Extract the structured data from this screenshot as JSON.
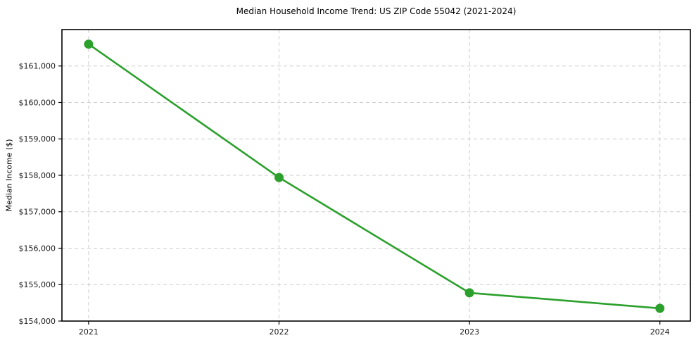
{
  "chart_data": {
    "type": "line",
    "title": "Median Household Income Trend: US ZIP Code 55042 (2021-2024)",
    "xlabel": "",
    "ylabel": "Median Income ($)",
    "x": [
      2021,
      2022,
      2023,
      2024
    ],
    "x_tick_labels": [
      "2021",
      "2022",
      "2023",
      "2024"
    ],
    "series": [
      {
        "name": "Median Household Income",
        "values": [
          161600,
          157940,
          154775,
          154350
        ]
      }
    ],
    "y_ticks": [
      154000,
      155000,
      156000,
      157000,
      158000,
      159000,
      160000,
      161000
    ],
    "y_tick_labels": [
      "$154,000",
      "$155,000",
      "$156,000",
      "$157,000",
      "$158,000",
      "$159,000",
      "$160,000",
      "$161,000"
    ],
    "ylim": [
      154000,
      162000
    ],
    "xlim": [
      2020.86,
      2024.16
    ],
    "grid": true,
    "grid_style": "dashed",
    "legend": "none",
    "colors": {
      "line": "#2ca02c",
      "marker": "#2ca02c",
      "grid": "#cccccc",
      "spine": "#000000",
      "tick_text": "#1a1a1a",
      "background": "#ffffff"
    }
  }
}
